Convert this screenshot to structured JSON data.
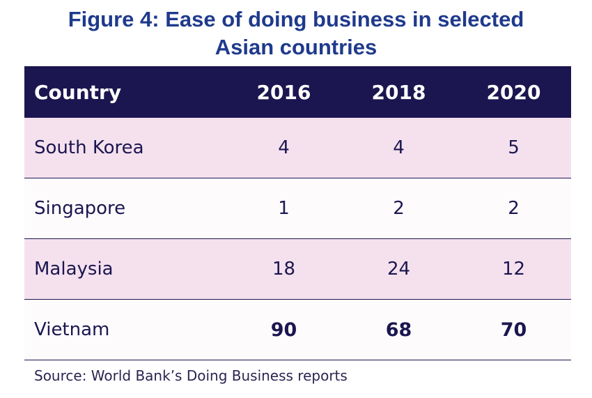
{
  "chart_data": {
    "type": "table",
    "title_line1": "Figure 4: Ease of doing business in selected",
    "title_line2": "Asian countries",
    "columns": [
      "Country",
      "2016",
      "2018",
      "2020"
    ],
    "rows": [
      {
        "country": "South Korea",
        "values": [
          "4",
          "4",
          "5"
        ]
      },
      {
        "country": "Singapore",
        "values": [
          "1",
          "2",
          "2"
        ]
      },
      {
        "country": "Malaysia",
        "values": [
          "18",
          "24",
          "12"
        ]
      },
      {
        "country": "Vietnam",
        "values": [
          "90",
          "68",
          "70"
        ]
      }
    ],
    "source": "Source: World Bank’s Doing Business reports",
    "colors": {
      "header": "#1b1650",
      "pink_row": "#f5e1ee",
      "title": "#1f3a8c"
    }
  }
}
